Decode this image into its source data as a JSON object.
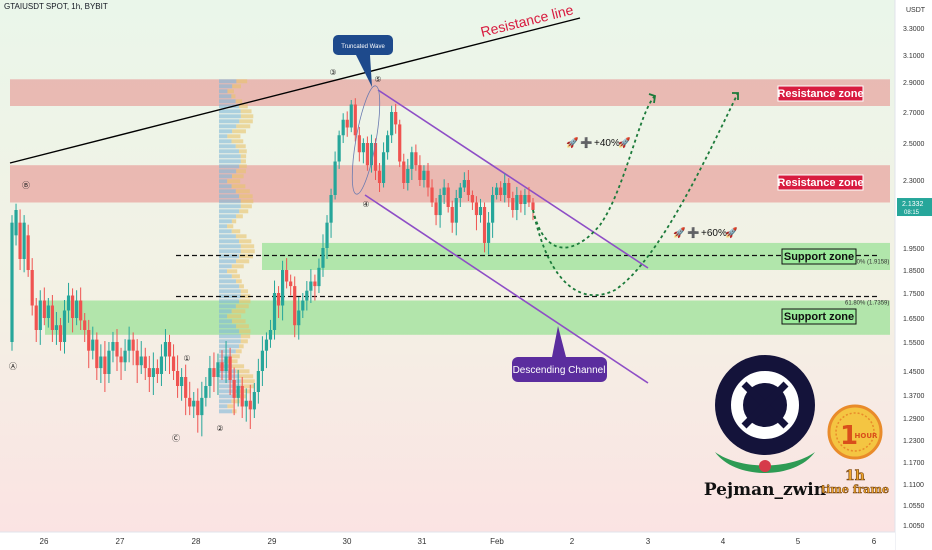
{
  "header": {
    "symbol_title": "GTAIUSDT SPOT, 1h, BYBIT",
    "currency": "USDT"
  },
  "chart_data": {
    "type": "candlestick",
    "x_ticks": [
      "26",
      "27",
      "28",
      "29",
      "30",
      "31",
      "Feb",
      "2",
      "3",
      "4",
      "5",
      "6"
    ],
    "y_ticks": [
      "3.3000",
      "3.1000",
      "2.9000",
      "2.7000",
      "2.5000",
      "2.3000",
      "2.1000",
      "1.9500",
      "1.8500",
      "1.7500",
      "1.6500",
      "1.5500",
      "1.4500",
      "1.3700",
      "1.2900",
      "1.2300",
      "1.1700",
      "1.1100",
      "1.0550",
      "1.0050"
    ],
    "current_price": {
      "value": "2.1332",
      "countdown": "08:15"
    },
    "zones": [
      {
        "name": "Resistance zone",
        "kind": "resistance",
        "top": 2.92,
        "bottom": 2.74
      },
      {
        "name": "Resistance zone",
        "kind": "resistance",
        "top": 2.38,
        "bottom": 2.15
      },
      {
        "name": "Support zone",
        "kind": "support",
        "top": 1.97,
        "bottom": 1.85
      },
      {
        "name": "Support zone",
        "kind": "support",
        "top": 1.72,
        "bottom": 1.58
      }
    ],
    "fib_levels": [
      {
        "label": "50.00% (1.9158)",
        "price": 1.9158
      },
      {
        "label": "61.80% (1.7359)",
        "price": 1.7359
      }
    ],
    "annotations": {
      "resistance_line": "Resistance line",
      "truncated_wave": "Truncated Wave",
      "descending_channel": "Descending Channel",
      "target1": "+40%",
      "target2": "+60%",
      "wave_labels": [
        "Ⓑ",
        "Ⓐ",
        "Ⓒ",
        "①",
        "②",
        "③",
        "④",
        "⑤"
      ]
    },
    "candles": [
      [
        1.55,
        2.05
      ],
      [
        2.0,
        2.1
      ],
      [
        2.05,
        1.9
      ],
      [
        1.9,
        2.05
      ],
      [
        2.0,
        1.85
      ],
      [
        1.85,
        1.7
      ],
      [
        1.7,
        1.6
      ],
      [
        1.6,
        1.72
      ],
      [
        1.72,
        1.65
      ],
      [
        1.65,
        1.7
      ],
      [
        1.7,
        1.6
      ],
      [
        1.6,
        1.62
      ],
      [
        1.62,
        1.55
      ],
      [
        1.55,
        1.68
      ],
      [
        1.68,
        1.74
      ],
      [
        1.74,
        1.65
      ],
      [
        1.65,
        1.72
      ],
      [
        1.72,
        1.64
      ],
      [
        1.64,
        1.6
      ],
      [
        1.6,
        1.52
      ],
      [
        1.52,
        1.56
      ],
      [
        1.56,
        1.46
      ],
      [
        1.46,
        1.5
      ],
      [
        1.5,
        1.44
      ],
      [
        1.44,
        1.52
      ],
      [
        1.52,
        1.55
      ],
      [
        1.55,
        1.5
      ],
      [
        1.5,
        1.48
      ],
      [
        1.48,
        1.52
      ],
      [
        1.52,
        1.56
      ],
      [
        1.56,
        1.52
      ],
      [
        1.52,
        1.47
      ],
      [
        1.47,
        1.5
      ],
      [
        1.5,
        1.46
      ],
      [
        1.46,
        1.43
      ],
      [
        1.43,
        1.46
      ],
      [
        1.46,
        1.44
      ],
      [
        1.44,
        1.5
      ],
      [
        1.5,
        1.55
      ],
      [
        1.55,
        1.5
      ],
      [
        1.5,
        1.45
      ],
      [
        1.45,
        1.4
      ],
      [
        1.4,
        1.43
      ],
      [
        1.43,
        1.36
      ],
      [
        1.36,
        1.33
      ],
      [
        1.33,
        1.35
      ],
      [
        1.35,
        1.3
      ],
      [
        1.3,
        1.36
      ],
      [
        1.36,
        1.4
      ],
      [
        1.4,
        1.46
      ],
      [
        1.46,
        1.43
      ],
      [
        1.43,
        1.48
      ],
      [
        1.48,
        1.45
      ],
      [
        1.45,
        1.5
      ],
      [
        1.5,
        1.42
      ],
      [
        1.42,
        1.36
      ],
      [
        1.36,
        1.4
      ],
      [
        1.4,
        1.33
      ],
      [
        1.33,
        1.35
      ],
      [
        1.35,
        1.32
      ],
      [
        1.32,
        1.38
      ],
      [
        1.38,
        1.45
      ],
      [
        1.45,
        1.52
      ],
      [
        1.52,
        1.56
      ],
      [
        1.56,
        1.6
      ],
      [
        1.6,
        1.75
      ],
      [
        1.75,
        1.7
      ],
      [
        1.7,
        1.85
      ],
      [
        1.85,
        1.8
      ],
      [
        1.8,
        1.78
      ],
      [
        1.78,
        1.62
      ],
      [
        1.62,
        1.68
      ],
      [
        1.68,
        1.72
      ],
      [
        1.72,
        1.76
      ],
      [
        1.76,
        1.8
      ],
      [
        1.8,
        1.78
      ],
      [
        1.78,
        1.86
      ],
      [
        1.86,
        1.95
      ],
      [
        1.95,
        2.05
      ],
      [
        2.05,
        2.2
      ],
      [
        2.2,
        2.4
      ],
      [
        2.4,
        2.55
      ],
      [
        2.55,
        2.65
      ],
      [
        2.65,
        2.6
      ],
      [
        2.6,
        2.75
      ],
      [
        2.75,
        2.55
      ],
      [
        2.55,
        2.45
      ],
      [
        2.45,
        2.5
      ],
      [
        2.5,
        2.38
      ],
      [
        2.38,
        2.5
      ],
      [
        2.5,
        2.35
      ],
      [
        2.35,
        2.28
      ],
      [
        2.28,
        2.45
      ],
      [
        2.45,
        2.55
      ],
      [
        2.55,
        2.7
      ],
      [
        2.7,
        2.62
      ],
      [
        2.62,
        2.4
      ],
      [
        2.4,
        2.28
      ],
      [
        2.28,
        2.36
      ],
      [
        2.36,
        2.45
      ],
      [
        2.45,
        2.38
      ],
      [
        2.38,
        2.3
      ],
      [
        2.3,
        2.35
      ],
      [
        2.35,
        2.25
      ],
      [
        2.25,
        2.15
      ],
      [
        2.15,
        2.08
      ],
      [
        2.08,
        2.2
      ],
      [
        2.2,
        2.25
      ],
      [
        2.25,
        2.12
      ],
      [
        2.12,
        2.05
      ],
      [
        2.05,
        2.18
      ],
      [
        2.18,
        2.25
      ],
      [
        2.25,
        2.3
      ],
      [
        2.3,
        2.2
      ],
      [
        2.2,
        2.15
      ],
      [
        2.15,
        2.08
      ],
      [
        2.08,
        2.12
      ],
      [
        2.12,
        1.97
      ],
      [
        1.97,
        2.05
      ],
      [
        2.05,
        2.2
      ],
      [
        2.2,
        2.25
      ],
      [
        2.25,
        2.2
      ],
      [
        2.2,
        2.28
      ],
      [
        2.28,
        2.18
      ],
      [
        2.18,
        2.1
      ],
      [
        2.1,
        2.2
      ],
      [
        2.2,
        2.14
      ],
      [
        2.14,
        2.2
      ],
      [
        2.2,
        2.15
      ],
      [
        2.15,
        2.1
      ]
    ]
  },
  "branding": {
    "author": "Pejman_zwin",
    "badge_top": "1",
    "badge_hour": "HOUR",
    "timeframe_value": "1h",
    "timeframe_text": "time frame"
  },
  "colors": {
    "up": "#26a69a",
    "down": "#ef5350",
    "resistance": "#e57373",
    "support": "#7cdc7c",
    "channel": "#8e4ec6",
    "callout_bg": "#1e4a8c",
    "channel_bg": "#5b2d9e",
    "accent_red": "#d81b3f",
    "curve": "#1b7a3a",
    "price_tag": "#26a69a"
  }
}
